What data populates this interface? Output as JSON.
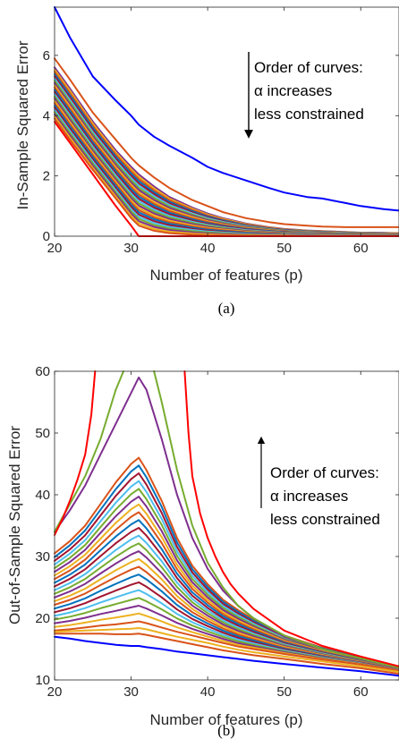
{
  "colors": {
    "blue": "#0000ff",
    "red": "#ff0000",
    "matlab_cycle": [
      "#d95319",
      "#edb120",
      "#7e2f8e",
      "#77ac30",
      "#4dbeee",
      "#a2142f",
      "#0072bd"
    ]
  },
  "chart_data": [
    {
      "type": "line",
      "panel_label": "(a)",
      "xlabel": "Number of features (p)",
      "ylabel": "In-Sample Squared Error",
      "xlim": [
        20,
        65
      ],
      "ylim": [
        0,
        7.6
      ],
      "xticks": [
        20,
        30,
        40,
        50,
        60
      ],
      "yticks": [
        0,
        2,
        4,
        6
      ],
      "grid": false,
      "annotation": {
        "lines": [
          "Order of curves:",
          "α increases",
          "less constrained"
        ],
        "arrow": "down"
      },
      "x": [
        20,
        22,
        25,
        28,
        30,
        31,
        33,
        35,
        38,
        40,
        42,
        45,
        48,
        50,
        53,
        55,
        58,
        60,
        63,
        65
      ],
      "curves": {
        "top": {
          "color": "#0000ff",
          "values": [
            7.6,
            6.6,
            5.3,
            4.5,
            4.0,
            3.7,
            3.3,
            3.0,
            2.6,
            2.3,
            2.1,
            1.85,
            1.6,
            1.45,
            1.3,
            1.25,
            1.1,
            1.0,
            0.9,
            0.85
          ]
        },
        "second": {
          "color": "#d95319",
          "values": [
            5.9,
            5.2,
            4.1,
            3.2,
            2.6,
            2.35,
            1.95,
            1.6,
            1.2,
            1.0,
            0.8,
            0.6,
            0.47,
            0.4,
            0.35,
            0.32,
            0.3,
            0.3,
            0.3,
            0.3
          ]
        },
        "band_top": {
          "values": [
            5.6,
            4.9,
            3.8,
            2.85,
            2.3,
            2.05,
            1.65,
            1.3,
            0.95,
            0.75,
            0.6,
            0.42,
            0.3,
            0.24,
            0.19,
            0.17,
            0.14,
            0.12,
            0.11,
            0.1
          ]
        },
        "band_bottom": {
          "values": [
            3.9,
            3.2,
            2.2,
            1.25,
            0.6,
            0.35,
            0.18,
            0.1,
            0.05,
            0.03,
            0.02,
            0.01,
            0.01,
            0.01,
            0.0,
            0.0,
            0.0,
            0.0,
            0.0,
            0.0
          ]
        },
        "interp_count": 24,
        "lowest": {
          "color": "#ff0000",
          "values": [
            3.8,
            3.1,
            2.05,
            1.0,
            0.35,
            0.0,
            0.0,
            0.0,
            0.0,
            0.0,
            0.0,
            0.0,
            0.0,
            0.0,
            0.0,
            0.0,
            0.0,
            0.0,
            0.0,
            0.0
          ]
        }
      }
    },
    {
      "type": "line",
      "panel_label": "(b)",
      "xlabel": "Number of features (p)",
      "ylabel": "Out-of-Sample Squared Error",
      "xlim": [
        20,
        65
      ],
      "ylim": [
        10,
        60
      ],
      "xticks": [
        20,
        30,
        40,
        50,
        60
      ],
      "yticks": [
        10,
        20,
        30,
        40,
        50,
        60
      ],
      "grid": false,
      "annotation": {
        "lines": [
          "Order of curves:",
          "α increases",
          "less constrained"
        ],
        "arrow": "up"
      },
      "x": [
        20,
        22,
        24,
        26,
        28,
        30,
        31,
        32,
        34,
        36,
        38,
        40,
        42,
        44,
        46,
        50,
        55,
        60,
        65
      ],
      "curves": {
        "peak": {
          "color": "#7e2f8e",
          "values": [
            34,
            37.5,
            41.5,
            46.5,
            51.5,
            56.5,
            59,
            57,
            49,
            40,
            33,
            28,
            24.5,
            22,
            20,
            17,
            15,
            13.5,
            12
          ]
        },
        "band_top": {
          "values": [
            30.5,
            32.5,
            35,
            38.5,
            42,
            45,
            46,
            44,
            39,
            33,
            28.5,
            25.5,
            23,
            21.3,
            19.8,
            17.2,
            15.2,
            13.6,
            12.1
          ]
        },
        "band_bottom": {
          "values": [
            18,
            18.2,
            18.5,
            18.8,
            19,
            19.3,
            19.5,
            19.2,
            18.5,
            17.8,
            17.2,
            16.6,
            16,
            15.4,
            15,
            14.2,
            13.3,
            12.5,
            11.5
          ]
        },
        "interp_count": 22,
        "below": [
          {
            "color": "#edb120",
            "values": [
              17.8,
              17.9,
              18,
              18.1,
              18.2,
              18.3,
              18.4,
              18.2,
              17.6,
              17,
              16.5,
              16,
              15.4,
              14.9,
              14.5,
              13.8,
              13,
              12.2,
              11.3
            ]
          },
          {
            "color": "#d95319",
            "values": [
              17.5,
              17.5,
              17.5,
              17.5,
              17.4,
              17.4,
              17.5,
              17.3,
              16.8,
              16.3,
              15.8,
              15.3,
              14.8,
              14.4,
              14,
              13.4,
              12.6,
              11.9,
              11
            ]
          },
          {
            "color": "#0000ff",
            "values": [
              17,
              16.7,
              16.3,
              16,
              15.7,
              15.5,
              15.5,
              15.3,
              15,
              14.6,
              14.3,
              14,
              13.7,
              13.4,
              13.1,
              12.6,
              12,
              11.4,
              10.7
            ]
          }
        ],
        "red_left": {
          "color": "#ff0000",
          "x": [
            20,
            21,
            22,
            23,
            24,
            24.8,
            25.3
          ],
          "values": [
            33.5,
            36,
            39,
            42.5,
            46.5,
            53,
            60
          ]
        },
        "green_left": {
          "color": "#77ac30",
          "x": [
            20,
            22,
            24,
            26,
            27,
            28,
            29
          ],
          "values": [
            34,
            38.5,
            43,
            49,
            53,
            57,
            60
          ]
        },
        "green_right": {
          "color": "#77ac30",
          "x": [
            33,
            34,
            36,
            38,
            40,
            42,
            44,
            46,
            50,
            55,
            60,
            65
          ],
          "values": [
            60,
            55,
            44,
            35,
            29,
            25,
            22,
            20,
            17.2,
            15,
            13.5,
            12
          ]
        },
        "red_right": {
          "color": "#ff0000",
          "x": [
            37,
            37.5,
            38,
            39,
            40,
            41,
            42,
            43,
            44,
            46,
            50,
            55,
            60,
            65
          ],
          "values": [
            60,
            50,
            43,
            37,
            33,
            30,
            27.5,
            25.5,
            24,
            21.5,
            18,
            15.5,
            13.8,
            12.2
          ]
        }
      }
    }
  ]
}
